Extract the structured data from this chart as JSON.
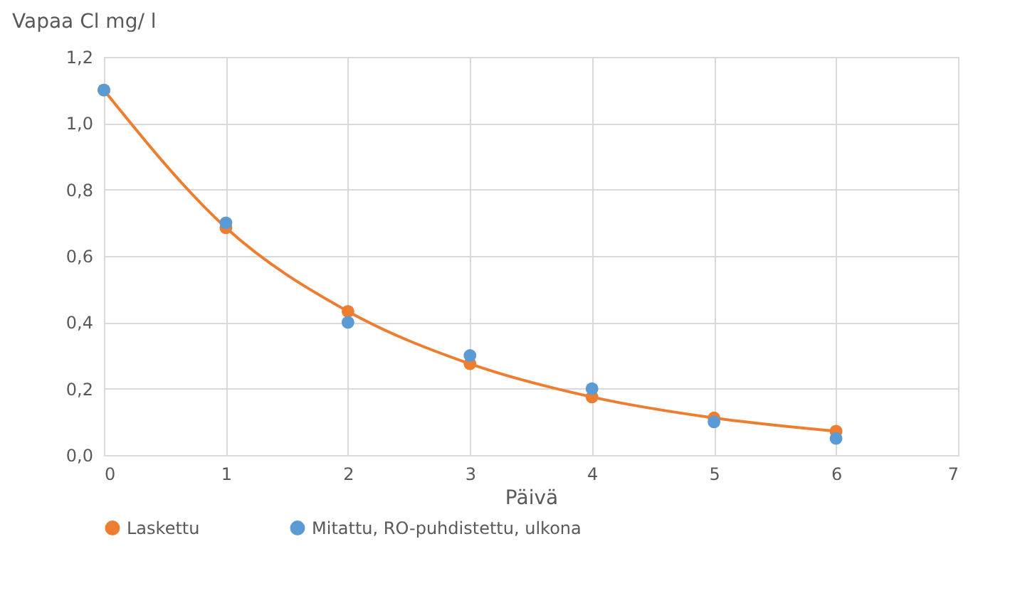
{
  "chart_data": {
    "type": "line",
    "xlabel": "Päivä",
    "ylabel": "Vapaa Cl mg/ l",
    "x": [
      0,
      1,
      2,
      3,
      4,
      5,
      6
    ],
    "series": [
      {
        "name": "Laskettu",
        "type": "line",
        "color": "#ed7d31",
        "values": [
          1.1,
          0.685,
          0.433,
          0.275,
          0.175,
          0.112,
          0.072
        ]
      },
      {
        "name": "Mitattu, RO-puhdistettu, ulkona",
        "type": "scatter",
        "color": "#5b9bd5",
        "values": [
          1.1,
          0.7,
          0.4,
          0.3,
          0.2,
          0.1,
          0.05
        ]
      }
    ],
    "xlim": [
      0,
      7
    ],
    "xticks": [
      0,
      1,
      2,
      3,
      4,
      5,
      6,
      7
    ],
    "ylim": [
      0,
      1.2
    ],
    "yticks": [
      {
        "value": 0,
        "label": "0,0"
      },
      {
        "value": 0.2,
        "label": "0,2"
      },
      {
        "value": 0.4,
        "label": "0,4"
      },
      {
        "value": 0.6,
        "label": "0,6"
      },
      {
        "value": 0.8,
        "label": "0,8"
      },
      {
        "value": 1.0,
        "label": "1,0"
      },
      {
        "value": 1.2,
        "label": "1,2"
      }
    ],
    "grid": true,
    "legend": "bottom",
    "marker": "circle"
  }
}
